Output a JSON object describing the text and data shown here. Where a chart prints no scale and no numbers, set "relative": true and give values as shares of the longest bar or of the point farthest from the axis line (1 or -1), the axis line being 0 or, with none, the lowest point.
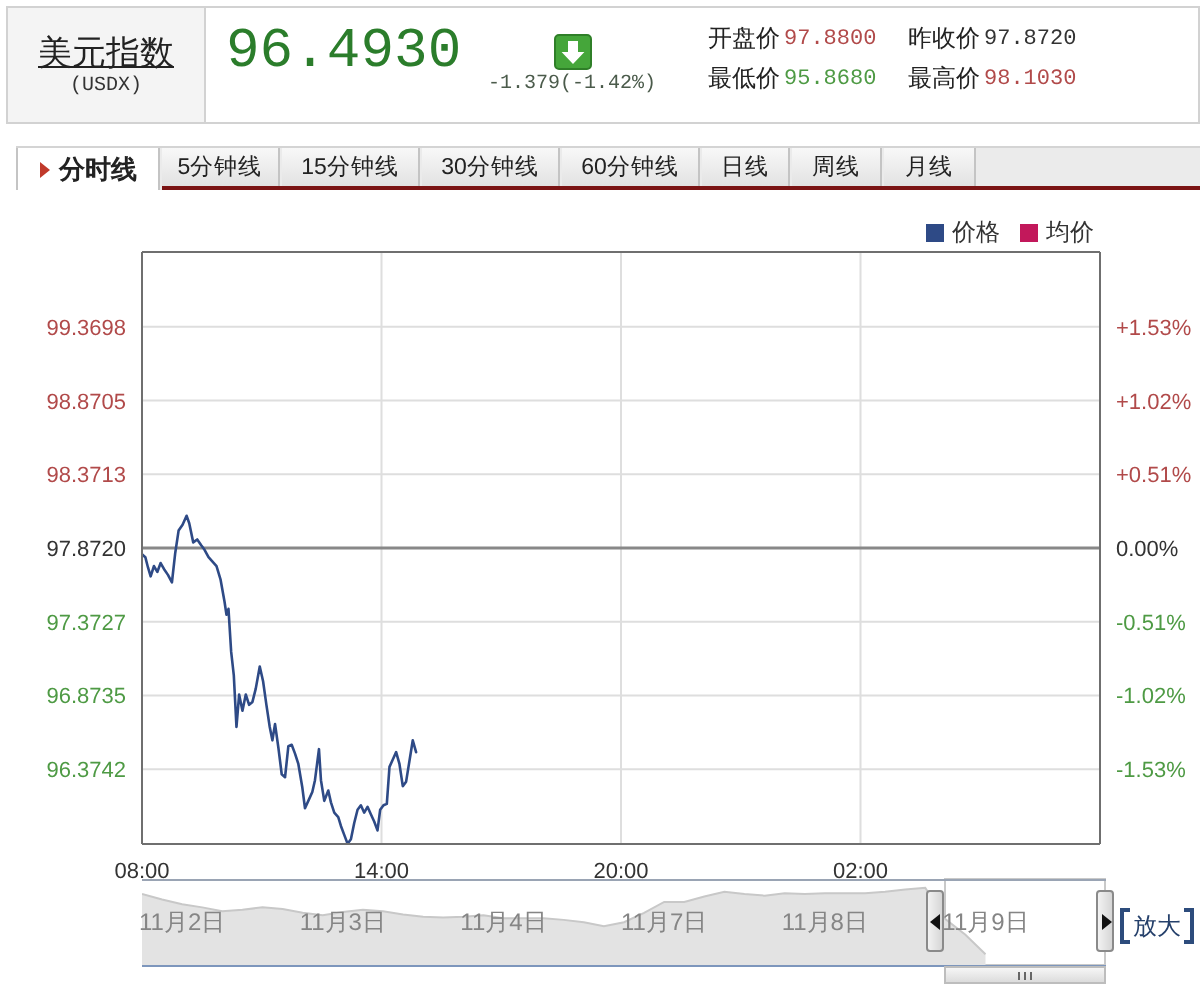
{
  "chart_data": [
    {
      "type": "line",
      "title": "美元指数",
      "subtitle": "(USDX)",
      "annotations": [
        "96.4930",
        "-1.379(-1.42%)",
        "开盘价",
        "97.8800",
        "昨收价",
        "97.8720",
        "最低价",
        "95.8680",
        "最高价",
        "98.1030",
        "分时线",
        "5分钟线",
        "15分钟线",
        "30分钟线",
        "60分钟线",
        "日线",
        "周线",
        "月线"
      ],
      "x": [
        "--11-09T08:00",
        "--11-09T08:05",
        "--11-09T08:09",
        "--11-09T08:13",
        "--11-09T08:18",
        "--11-09T08:23",
        "--11-09T08:28",
        "--11-09T08:33",
        "--11-09T08:39",
        "--11-09T08:45",
        "--11-09T08:50",
        "--11-09T08:55",
        "--11-09T09:01",
        "--11-09T09:07",
        "--11-09T09:11",
        "--11-09T09:17",
        "--11-09T09:23",
        "--11-09T09:29",
        "--11-09T09:34",
        "--11-09T09:40",
        "--11-09T09:46",
        "--11-09T09:52",
        "--11-09T09:58",
        "--11-09T10:04",
        "--11-09T10:07",
        "--11-09T10:10",
        "--11-09T10:14",
        "--11-09T10:18",
        "--11-09T10:22",
        "--11-09T10:26",
        "--11-09T10:31",
        "--11-09T10:36",
        "--11-09T10:41",
        "--11-09T10:46",
        "--11-09T10:51",
        "--11-09T10:57",
        "--11-09T11:02",
        "--11-09T11:07",
        "--11-09T11:12",
        "--11-09T11:16",
        "--11-09T11:20",
        "--11-09T11:25",
        "--11-09T11:30",
        "--11-09T11:35",
        "--11-09T11:40",
        "--11-09T11:45",
        "--11-09T11:50",
        "--11-09T11:55",
        "--11-09T12:01",
        "--11-09T12:05",
        "--11-09T12:11",
        "--11-09T12:16",
        "--11-09T12:20",
        "--11-09T12:26",
        "--11-09T12:29",
        "--11-09T12:34",
        "--11-09T12:40",
        "--11-09T12:44",
        "--11-09T12:49",
        "--11-09T12:55",
        "--11-09T12:59",
        "--11-09T13:04",
        "--11-09T13:09",
        "--11-09T13:14",
        "--11-09T13:19",
        "--11-09T13:24",
        "--11-09T13:29",
        "--11-09T13:34",
        "--11-09T13:39",
        "--11-09T13:44",
        "--11-09T13:49",
        "--11-09T13:54",
        "--11-09T13:58",
        "--11-09T14:03",
        "--11-09T14:08",
        "--11-09T14:12",
        "--11-09T14:17",
        "--11-09T14:22",
        "--11-09T14:27",
        "--11-09T14:32",
        "--11-09T14:37",
        "--11-09T14:42",
        "--11-09T14:47",
        "--11-09T14:52"
      ],
      "series": [
        {
          "name": "价格",
          "color": "#2e4a86",
          "values": [
            97.83,
            97.81,
            97.74,
            97.68,
            97.75,
            97.71,
            97.77,
            97.73,
            97.69,
            97.64,
            97.84,
            97.99,
            98.03,
            98.09,
            98.04,
            97.91,
            97.93,
            97.89,
            97.86,
            97.81,
            97.78,
            97.75,
            97.66,
            97.51,
            97.42,
            97.46,
            97.17,
            97.01,
            96.66,
            96.88,
            96.77,
            96.88,
            96.81,
            96.83,
            96.92,
            97.07,
            96.97,
            96.81,
            96.66,
            96.57,
            96.68,
            96.52,
            96.34,
            96.32,
            96.53,
            96.54,
            96.48,
            96.41,
            96.25,
            96.11,
            96.17,
            96.22,
            96.3,
            96.51,
            96.3,
            96.16,
            96.23,
            96.15,
            96.08,
            96.05,
            95.99,
            95.93,
            95.87,
            95.9,
            96.01,
            96.1,
            96.13,
            96.08,
            96.12,
            96.07,
            96.02,
            95.96,
            96.1,
            96.13,
            96.14,
            96.39,
            96.44,
            96.49,
            96.41,
            96.26,
            96.29,
            96.43,
            96.57,
            96.49
          ]
        },
        {
          "name": "均价",
          "color": "#c2185b",
          "values": [
            null,
            null,
            null,
            null,
            null,
            null,
            null,
            null,
            null,
            null,
            null,
            null,
            null,
            null,
            null,
            null,
            null,
            null,
            null,
            null,
            null,
            null,
            null,
            null,
            null,
            null,
            null,
            null,
            null,
            null,
            null,
            null,
            null,
            null,
            null,
            null,
            null,
            null,
            null,
            null,
            null,
            null,
            null,
            null,
            null,
            null,
            null,
            null,
            null,
            null,
            null,
            null,
            null,
            null,
            null,
            null,
            null,
            null,
            null,
            null,
            null,
            null,
            null,
            null,
            null,
            null,
            null,
            null,
            null,
            null,
            null,
            null,
            null,
            null,
            null,
            null,
            null,
            null,
            null,
            null,
            null,
            null,
            null,
            null
          ]
        }
      ],
      "xlim": [
        "--11-09T08:00",
        "--11-10T08:00"
      ],
      "xticks": [
        {
          "value": "--11-09T08:00",
          "label": "08:00"
        },
        {
          "value": "--11-09T14:00",
          "label": "14:00"
        },
        {
          "value": "--11-09T20:00",
          "label": "20:00"
        },
        {
          "value": "--11-10T02:00",
          "label": "02:00"
        }
      ],
      "ylim": [
        95.868,
        99.876
      ],
      "yticks": [
        99.3698,
        98.8705,
        98.3713,
        {
          "value": 97.872,
          "label": "97.8720"
        },
        97.3727,
        96.8735,
        96.3742
      ],
      "y2lim": [
        -2.05,
        2.05
      ],
      "y2ticks": [
        {
          "value": 1.53,
          "label": "+1.53%"
        },
        {
          "value": 1.02,
          "label": "+1.02%"
        },
        {
          "value": 0.51,
          "label": "+0.51%"
        },
        {
          "value": 0,
          "label": "0.00%"
        },
        {
          "value": -0.51,
          "label": "-0.51%"
        },
        {
          "value": -1.02,
          "label": "-1.02%"
        },
        {
          "value": -1.53,
          "label": "-1.53%"
        }
      ],
      "ref_lines": [
        {
          "axis": "y",
          "value": 97.872,
          "color": "#888888"
        }
      ],
      "grid": true,
      "legend": "top right",
      "marker": "none"
    },
    {
      "type": "area",
      "relative": true,
      "color": "#e3e3e3",
      "categories": [
        null,
        null,
        "11月2日",
        null,
        null,
        null,
        null,
        null,
        null,
        null,
        "11月3日",
        null,
        null,
        null,
        null,
        null,
        null,
        null,
        "11月4日",
        null,
        null,
        null,
        null,
        null,
        null,
        null,
        "11月7日",
        null,
        null,
        null,
        null,
        null,
        null,
        null,
        "11月8日",
        null,
        null,
        null,
        null,
        null,
        null,
        null,
        "11月9日",
        null,
        null,
        null,
        null,
        null
      ],
      "values": [
        0.92,
        0.85,
        0.79,
        0.75,
        0.7,
        0.72,
        0.75,
        0.73,
        0.68,
        0.65,
        0.69,
        0.72,
        0.7,
        0.66,
        0.63,
        0.62,
        0.63,
        0.65,
        0.61,
        0.61,
        0.61,
        0.59,
        0.56,
        0.51,
        0.56,
        0.68,
        0.82,
        0.82,
        0.89,
        0.95,
        0.92,
        0.9,
        0.93,
        0.92,
        0.93,
        0.93,
        0.93,
        0.95,
        0.98,
        1,
        0.6,
        0.4,
        0.15,
        null,
        null,
        null,
        null,
        null
      ],
      "annotations": [
        "放大"
      ]
    }
  ]
}
